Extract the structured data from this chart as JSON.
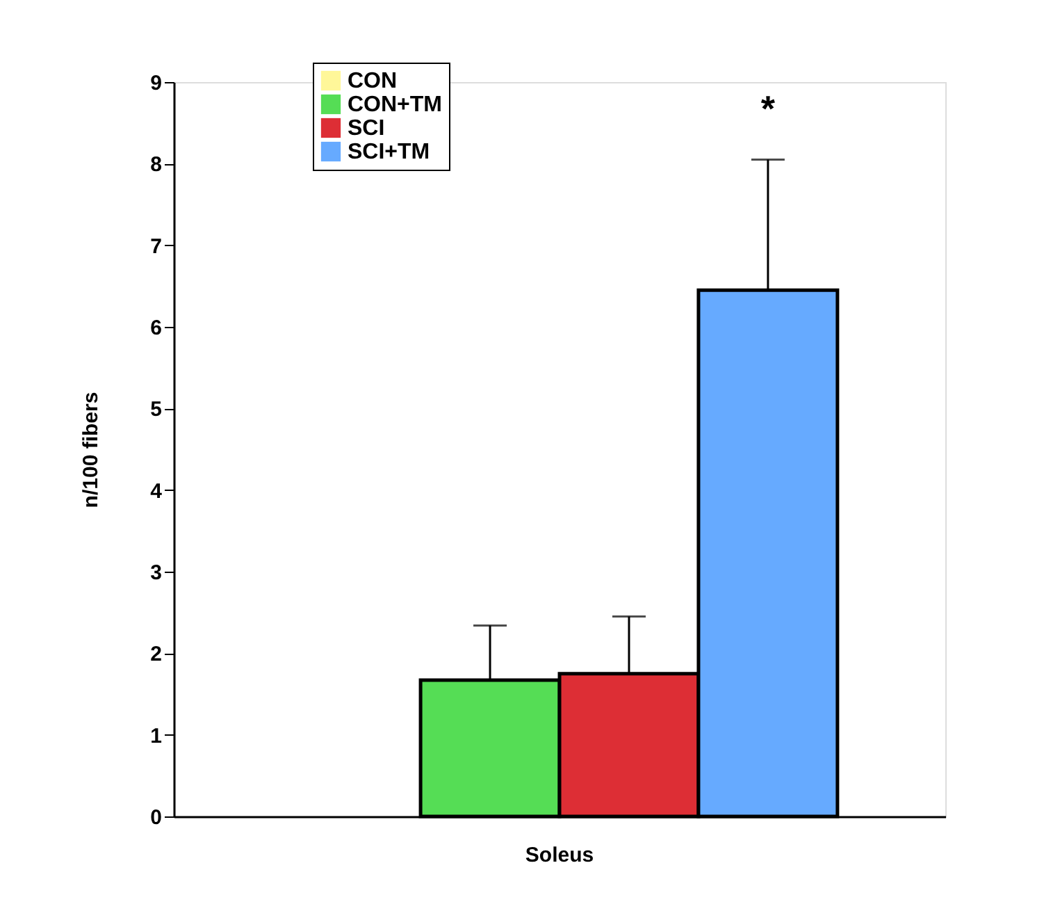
{
  "chart_data": {
    "type": "bar",
    "ylabel": "n/100 fibers",
    "categories": [
      "Soleus"
    ],
    "series": [
      {
        "name": "CON",
        "color": "#fff799",
        "values": [
          0
        ],
        "errors": [
          null
        ]
      },
      {
        "name": "CON+TM",
        "color": "#55dd55",
        "values": [
          1.67
        ],
        "errors": [
          0.67
        ]
      },
      {
        "name": "SCI",
        "color": "#dd2e35",
        "values": [
          1.75
        ],
        "errors": [
          0.7
        ]
      },
      {
        "name": "SCI+TM",
        "color": "#66aaff",
        "values": [
          6.45
        ],
        "errors": [
          1.6
        ]
      }
    ],
    "ylim": [
      0,
      9
    ],
    "yticks": [
      0,
      1,
      2,
      3,
      4,
      5,
      6,
      7,
      8,
      9
    ],
    "annotations": [
      "*"
    ],
    "grid": false,
    "legend": "top left"
  }
}
